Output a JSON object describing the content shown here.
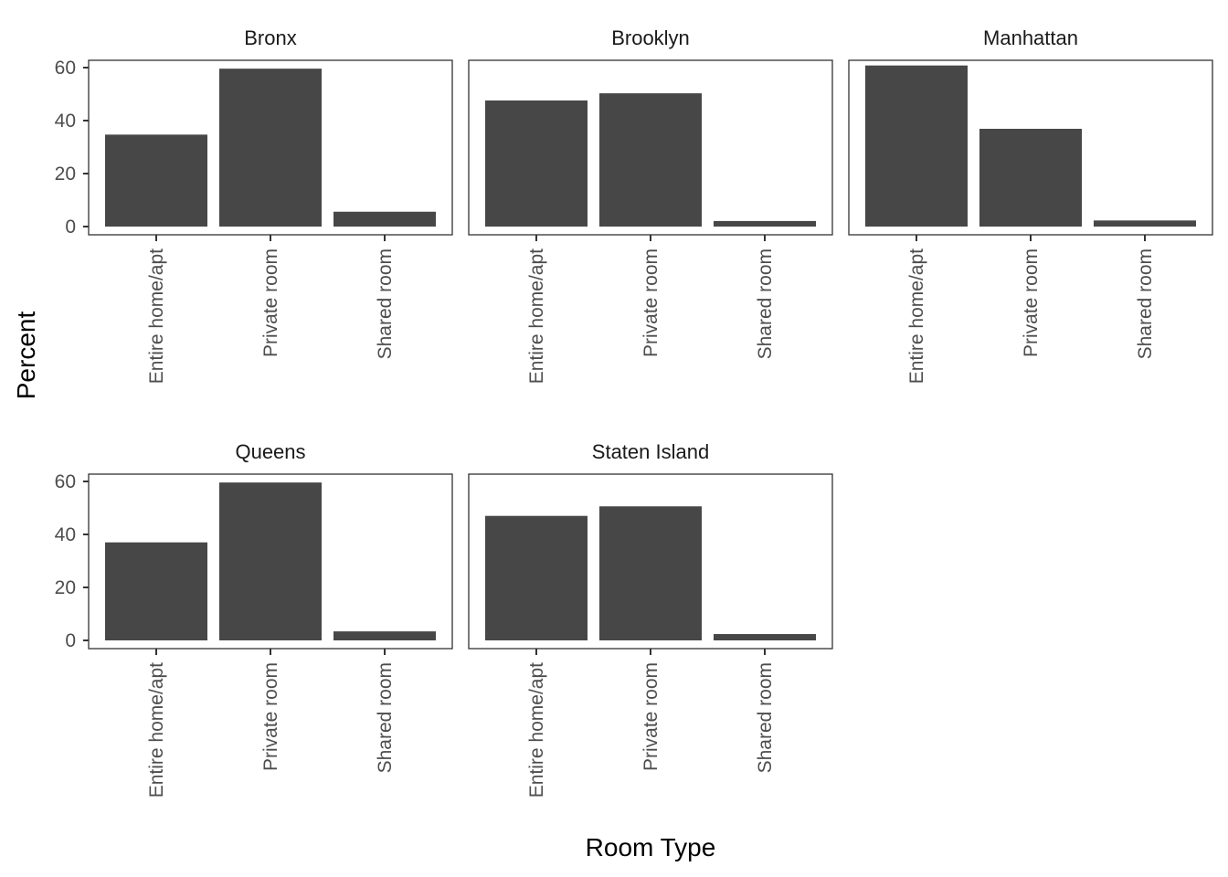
{
  "chart_data": {
    "type": "bar",
    "facet_by": "borough",
    "xlabel": "Room Type",
    "ylabel": "Percent",
    "categories": [
      "Entire home/apt",
      "Private room",
      "Shared room"
    ],
    "ylim": [
      0,
      63
    ],
    "yticks": [
      0,
      20,
      40,
      60
    ],
    "grid": false,
    "bar_color": "#474747",
    "panels": [
      {
        "title": "Bronx",
        "values": [
          34.7,
          59.6,
          5.6
        ]
      },
      {
        "title": "Brooklyn",
        "values": [
          47.6,
          50.3,
          2.1
        ]
      },
      {
        "title": "Manhattan",
        "values": [
          60.8,
          36.9,
          2.3
        ]
      },
      {
        "title": "Queens",
        "values": [
          37.0,
          59.6,
          3.4
        ]
      },
      {
        "title": "Staten Island",
        "values": [
          47.0,
          50.6,
          2.4
        ]
      }
    ]
  }
}
